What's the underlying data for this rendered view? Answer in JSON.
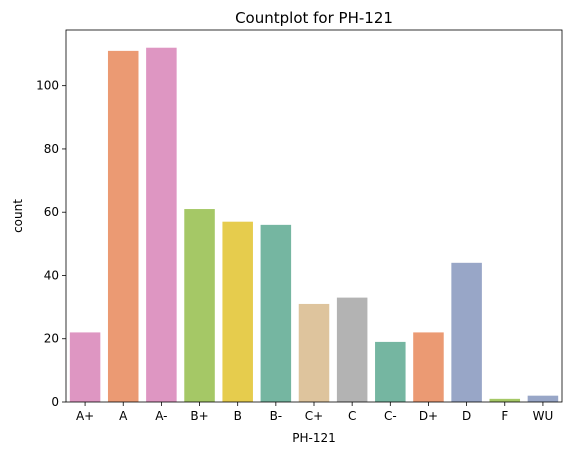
{
  "chart_data": {
    "type": "bar",
    "title": "Countplot for PH-121",
    "xlabel": "PH-121",
    "ylabel": "count",
    "categories": [
      "A+",
      "A",
      "A-",
      "B+",
      "B",
      "B-",
      "C+",
      "C",
      "C-",
      "D+",
      "D",
      "F",
      "WU"
    ],
    "values": [
      22,
      111,
      112,
      61,
      57,
      56,
      31,
      33,
      19,
      22,
      44,
      1,
      2
    ],
    "colors": [
      "#de96c2",
      "#eb9a73",
      "#de96c2",
      "#a5c866",
      "#e6cc4d",
      "#75b6a1",
      "#dec49d",
      "#b3b3b3",
      "#75b6a1",
      "#eb9a73",
      "#98a6c7",
      "#a5c866",
      "#98a6c7"
    ],
    "ylim": [
      0,
      117.6
    ],
    "yticks": [
      0,
      20,
      40,
      60,
      80,
      100
    ],
    "grid": false,
    "legend": "none"
  }
}
